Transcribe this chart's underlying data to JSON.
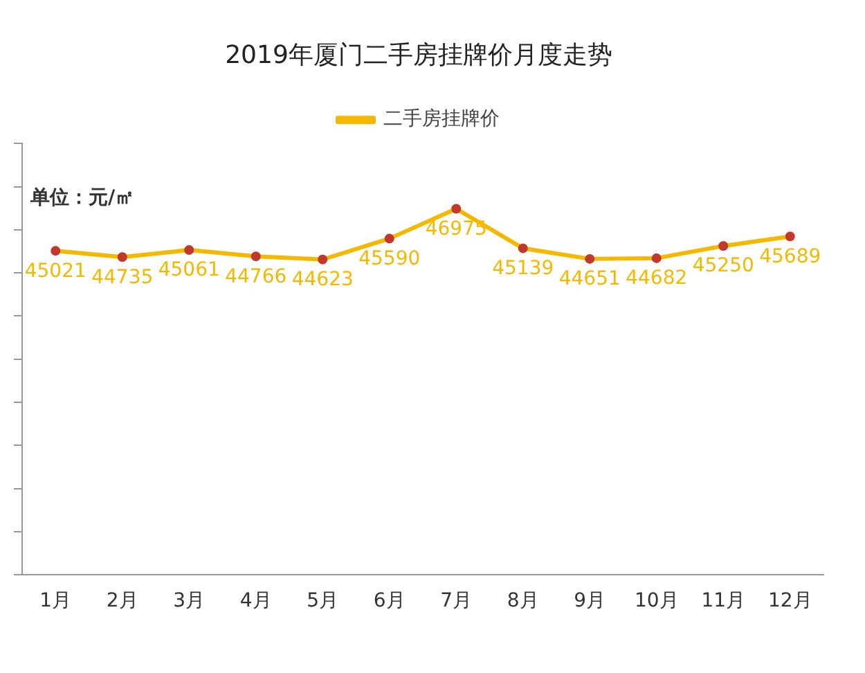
{
  "chart_data": {
    "type": "line",
    "title": "2019年厦门二手房挂牌价月度走势",
    "categories": [
      "1月",
      "2月",
      "3月",
      "4月",
      "5月",
      "6月",
      "7月",
      "8月",
      "9月",
      "10月",
      "11月",
      "12月"
    ],
    "series": [
      {
        "name": "二手房挂牌价",
        "color": "#f5b800",
        "values": [
          45021,
          44735,
          45061,
          44766,
          44623,
          45590,
          46975,
          45139,
          44651,
          44682,
          45250,
          45689
        ]
      }
    ],
    "ylim": [
      30000,
      50000
    ],
    "yticks": [
      {
        "value": 30000,
        "label": null
      },
      {
        "value": 32000,
        "label": null
      },
      {
        "value": 34000,
        "label": null
      },
      {
        "value": 36000,
        "label": null
      },
      {
        "value": 38000,
        "label": null
      },
      {
        "value": 40000,
        "label": null
      },
      {
        "value": 42000,
        "label": null
      },
      {
        "value": 44000,
        "label": null
      },
      {
        "value": 46000,
        "label": null
      },
      {
        "value": 48000,
        "label": null
      },
      {
        "value": 50000,
        "label": null
      }
    ],
    "tick_labels": "x",
    "data_labels": true,
    "legend": "top",
    "marker": "circle",
    "line_style": "solid",
    "grid": false,
    "annotations": [
      "单位：元/㎡"
    ]
  }
}
